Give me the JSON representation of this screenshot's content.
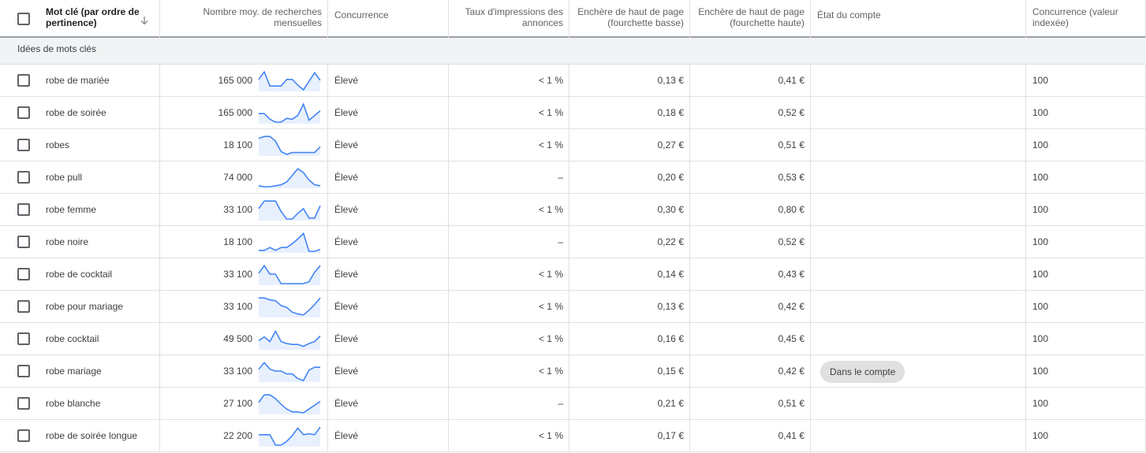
{
  "columns": {
    "keyword": "Mot clé (par ordre de pertinence)",
    "avg_searches": "Nombre moy. de recherches mensuelles",
    "competition": "Concurrence",
    "impression_share": "Taux d'impressions des annonces",
    "bid_low": "Enchère de haut de page (fourchette basse)",
    "bid_high": "Enchère de haut de page (fourchette haute)",
    "account_status": "État du compte",
    "competition_index": "Concurrence (valeur indexée)"
  },
  "group_label": "Idées de mots clés",
  "sort_icon": "arrow-down-icon",
  "colors": {
    "spark_line": "#4285f4",
    "spark_fill": "#e8f0fe",
    "badge_bg": "#e0e0e0"
  },
  "rows": [
    {
      "keyword": "robe de mariée",
      "searches": "165 000",
      "trend": [
        0.55,
        0.95,
        0.2,
        0.2,
        0.2,
        0.55,
        0.55,
        0.25,
        0.0,
        0.45,
        0.9,
        0.5
      ],
      "competition": "Élevé",
      "share": "< 1 %",
      "bid_low": "0,13 €",
      "bid_high": "0,41 €",
      "status": "",
      "index": "100"
    },
    {
      "keyword": "robe de soirée",
      "searches": "165 000",
      "trend": [
        0.45,
        0.45,
        0.15,
        0.0,
        0.0,
        0.2,
        0.15,
        0.35,
        0.95,
        0.1,
        0.35,
        0.6
      ],
      "competition": "Élevé",
      "share": "< 1 %",
      "bid_low": "0,18 €",
      "bid_high": "0,52 €",
      "status": "",
      "index": "100"
    },
    {
      "keyword": "robes",
      "searches": "18 100",
      "trend": [
        0.85,
        0.95,
        0.95,
        0.7,
        0.15,
        0.0,
        0.1,
        0.1,
        0.1,
        0.1,
        0.1,
        0.4
      ],
      "competition": "Élevé",
      "share": "< 1 %",
      "bid_low": "0,27 €",
      "bid_high": "0,51 €",
      "status": "",
      "index": "100"
    },
    {
      "keyword": "robe pull",
      "searches": "74 000",
      "trend": [
        0.05,
        0.0,
        0.0,
        0.05,
        0.1,
        0.25,
        0.6,
        0.95,
        0.75,
        0.35,
        0.1,
        0.05
      ],
      "competition": "Élevé",
      "share": "–",
      "bid_low": "0,20 €",
      "bid_high": "0,53 €",
      "status": "",
      "index": "100"
    },
    {
      "keyword": "robe femme",
      "searches": "33 100",
      "trend": [
        0.55,
        0.95,
        0.95,
        0.95,
        0.4,
        0.0,
        0.0,
        0.3,
        0.55,
        0.05,
        0.05,
        0.7
      ],
      "competition": "Élevé",
      "share": "< 1 %",
      "bid_low": "0,30 €",
      "bid_high": "0,80 €",
      "status": "",
      "index": "100"
    },
    {
      "keyword": "robe noire",
      "searches": "18 100",
      "trend": [
        0.05,
        0.05,
        0.2,
        0.05,
        0.2,
        0.2,
        0.4,
        0.65,
        0.95,
        0.0,
        0.0,
        0.1
      ],
      "competition": "Élevé",
      "share": "–",
      "bid_low": "0,22 €",
      "bid_high": "0,52 €",
      "status": "",
      "index": "100"
    },
    {
      "keyword": "robe de cocktail",
      "searches": "33 100",
      "trend": [
        0.55,
        0.95,
        0.5,
        0.5,
        0.0,
        0.0,
        0.0,
        0.0,
        0.0,
        0.1,
        0.6,
        0.95
      ],
      "competition": "Élevé",
      "share": "< 1 %",
      "bid_low": "0,14 €",
      "bid_high": "0,43 €",
      "status": "",
      "index": "100"
    },
    {
      "keyword": "robe pour mariage",
      "searches": "33 100",
      "trend": [
        0.95,
        0.95,
        0.85,
        0.8,
        0.55,
        0.45,
        0.2,
        0.1,
        0.05,
        0.3,
        0.6,
        0.95
      ],
      "competition": "Élevé",
      "share": "< 1 %",
      "bid_low": "0,13 €",
      "bid_high": "0,42 €",
      "status": "",
      "index": "100"
    },
    {
      "keyword": "robe cocktail",
      "searches": "49 500",
      "trend": [
        0.4,
        0.6,
        0.35,
        0.9,
        0.35,
        0.25,
        0.2,
        0.2,
        0.1,
        0.25,
        0.35,
        0.65
      ],
      "competition": "Élevé",
      "share": "< 1 %",
      "bid_low": "0,16 €",
      "bid_high": "0,45 €",
      "status": "",
      "index": "100"
    },
    {
      "keyword": "robe mariage",
      "searches": "33 100",
      "trend": [
        0.6,
        0.95,
        0.6,
        0.5,
        0.5,
        0.35,
        0.35,
        0.1,
        0.0,
        0.55,
        0.7,
        0.7
      ],
      "competition": "Élevé",
      "share": "< 1 %",
      "bid_low": "0,15 €",
      "bid_high": "0,42 €",
      "status": "Dans le compte",
      "index": "100"
    },
    {
      "keyword": "robe blanche",
      "searches": "27 100",
      "trend": [
        0.55,
        0.95,
        0.95,
        0.75,
        0.45,
        0.2,
        0.05,
        0.05,
        0.0,
        0.2,
        0.4,
        0.6
      ],
      "competition": "Élevé",
      "share": "–",
      "bid_low": "0,21 €",
      "bid_high": "0,51 €",
      "status": "",
      "index": "100"
    },
    {
      "keyword": "robe de soirée longue",
      "searches": "22 200",
      "trend": [
        0.55,
        0.55,
        0.55,
        0.0,
        0.0,
        0.2,
        0.5,
        0.9,
        0.55,
        0.6,
        0.55,
        0.95
      ],
      "competition": "Élevé",
      "share": "< 1 %",
      "bid_low": "0,17 €",
      "bid_high": "0,41 €",
      "status": "",
      "index": "100"
    }
  ]
}
